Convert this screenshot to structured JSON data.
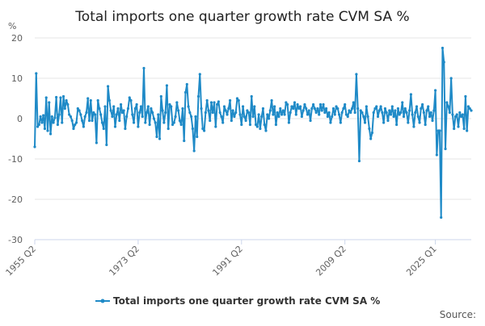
{
  "chart_data": {
    "type": "line",
    "title": "Total imports one quarter growth rate CVM SA %",
    "ylabel": "%",
    "xlabel": "",
    "ylim": [
      -30,
      20
    ],
    "yticks": [
      20,
      10,
      0,
      -10,
      -20,
      -30
    ],
    "x_ticks": [
      "1955 Q2",
      "1973 Q2",
      "1991 Q2",
      "2009 Q2",
      "2025 Q1"
    ],
    "grid": "horizontal",
    "legend_position": "bottom-center",
    "series": [
      {
        "name": "Total imports one quarter growth rate CVM SA %",
        "color": "#1f8ac7",
        "x_start": "1955 Q2",
        "x_end": "2025 Q1",
        "values": [
          -7.0,
          11.2,
          -2.0,
          -1.5,
          0.5,
          -1.0,
          0.8,
          -2.5,
          5.2,
          -3.0,
          4.0,
          -3.8,
          0.5,
          -1.0,
          0.2,
          5.3,
          -1.5,
          1.0,
          5.2,
          -1.0,
          5.5,
          2.5,
          4.5,
          3.5,
          1.0,
          0.5,
          -0.5,
          -2.5,
          -1.5,
          -1.0,
          2.5,
          2.0,
          1.0,
          -0.5,
          -2.0,
          0.5,
          1.5,
          5.0,
          -0.5,
          4.5,
          -0.5,
          1.5,
          1.0,
          -6.0,
          4.5,
          2.5,
          1.0,
          -1.0,
          -2.5,
          3.0,
          -6.5,
          8.0,
          4.5,
          2.0,
          0.5,
          3.0,
          -2.0,
          1.0,
          2.5,
          -0.5,
          3.5,
          1.5,
          2.0,
          -2.5,
          0.5,
          2.5,
          5.2,
          4.5,
          1.0,
          -1.0,
          2.5,
          3.5,
          -2.0,
          1.5,
          3.0,
          0.5,
          12.5,
          -1.0,
          1.5,
          3.0,
          -1.5,
          2.5,
          1.5,
          0.0,
          -1.0,
          -4.5,
          1.0,
          -5.0,
          5.5,
          2.0,
          -1.0,
          1.5,
          8.2,
          -2.5,
          3.5,
          3.0,
          -1.5,
          -1.0,
          0.5,
          4.0,
          2.0,
          -0.5,
          -1.5,
          2.5,
          -5.5,
          6.5,
          8.5,
          3.0,
          1.5,
          0.5,
          -2.5,
          -8.0,
          0.5,
          -4.5,
          5.5,
          11.0,
          2.5,
          -2.5,
          -3.0,
          1.5,
          4.5,
          2.0,
          -0.5,
          4.0,
          1.5,
          4.0,
          -2.0,
          3.5,
          4.2,
          1.5,
          0.5,
          -1.0,
          3.0,
          2.0,
          1.0,
          2.5,
          4.5,
          -0.5,
          2.0,
          0.5,
          1.5,
          5.0,
          4.5,
          1.0,
          -1.5,
          3.0,
          0.5,
          -0.5,
          2.0,
          1.5,
          -1.5,
          5.5,
          0.5,
          3.0,
          -1.5,
          -2.0,
          1.0,
          -2.5,
          0.5,
          2.5,
          -1.5,
          -3.0,
          1.0,
          0.0,
          2.0,
          4.5,
          1.0,
          3.0,
          -1.5,
          1.5,
          0.5,
          2.5,
          1.0,
          2.0,
          1.0,
          4.0,
          3.5,
          -1.0,
          1.5,
          3.0,
          2.5,
          4.0,
          1.0,
          3.5,
          2.5,
          3.0,
          0.5,
          2.0,
          3.5,
          2.5,
          1.0,
          2.0,
          -0.5,
          2.5,
          3.5,
          2.5,
          1.5,
          2.5,
          1.0,
          3.5,
          2.0,
          3.5,
          1.5,
          2.5,
          0.5,
          1.5,
          -1.0,
          0.5,
          2.5,
          1.0,
          3.0,
          2.5,
          1.0,
          -1.0,
          1.5,
          2.5,
          3.5,
          1.0,
          0.5,
          2.0,
          1.5,
          2.5,
          4.0,
          1.5,
          11.0,
          2.5,
          -10.5,
          2.0,
          1.5,
          0.5,
          -1.0,
          3.0,
          0.5,
          -2.5,
          -5.0,
          -3.5,
          1.5,
          2.5,
          3.0,
          0.5,
          2.0,
          3.0,
          1.5,
          -1.0,
          2.5,
          1.5,
          -0.5,
          2.0,
          1.0,
          3.0,
          0.5,
          2.0,
          -1.5,
          2.5,
          1.0,
          1.5,
          4.0,
          0.5,
          2.5,
          1.5,
          -1.0,
          2.0,
          6.0,
          1.0,
          -2.0,
          1.5,
          3.0,
          0.5,
          -1.0,
          2.5,
          3.5,
          1.5,
          -1.5,
          2.0,
          3.0,
          0.5,
          1.5,
          -0.5,
          2.0,
          7.0,
          -9.0,
          -3.0,
          -3.0,
          -24.5,
          17.5,
          14.0,
          -7.5,
          4.0,
          3.0,
          1.5,
          10.0,
          1.0,
          -2.5,
          0.5,
          1.0,
          -2.0,
          1.5,
          0.5,
          1.0,
          -2.5,
          5.5,
          -3.0,
          3.0,
          2.5,
          2.0
        ]
      }
    ],
    "source_label": "Source:"
  }
}
